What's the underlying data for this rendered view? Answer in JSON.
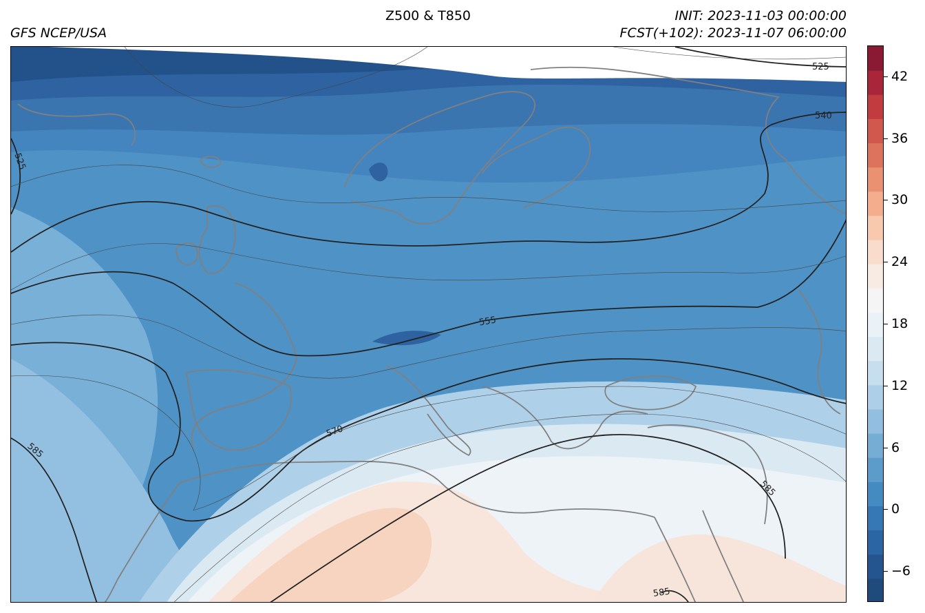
{
  "header": {
    "title": "Z500 & T850",
    "model": "GFS NCEP/USA",
    "init": "INIT: 2023-11-03 00:00:00",
    "forecast": "FCST(+102): 2023-11-07 06:00:00"
  },
  "map": {
    "field_shaded": "T850",
    "field_contoured": "Z500",
    "region": "Europe, North Atlantic, North Africa",
    "contour_labels": [
      "525",
      "525",
      "540",
      "555",
      "570",
      "585",
      "585",
      "585"
    ],
    "coastline_color": "#808080",
    "contour_color": "#222222"
  },
  "colorbar": {
    "min": -9,
    "max": 45,
    "step": 3,
    "tick_labels": [
      "−6",
      "0",
      "6",
      "12",
      "18",
      "24",
      "30",
      "36",
      "42"
    ],
    "palette": [
      "#1f4a7c",
      "#24558f",
      "#2b65a3",
      "#3578b5",
      "#438bc0",
      "#5c9ccb",
      "#76add5",
      "#92bedf",
      "#adcfe7",
      "#c6deee",
      "#dbe9f3",
      "#eaf1f7",
      "#f5f5f5",
      "#f8ebe4",
      "#fadccc",
      "#f9c9ae",
      "#f4ae8d",
      "#ea9172",
      "#de735d",
      "#d0584c",
      "#c23c3f",
      "#a9253a",
      "#8a1a33"
    ]
  }
}
